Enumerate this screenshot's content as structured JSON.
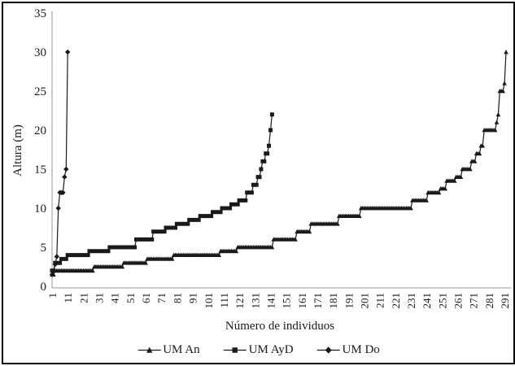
{
  "chart_data": {
    "type": "line",
    "title": "",
    "xlabel": "Número de individuos",
    "ylabel": "Altura (m)",
    "ylim": [
      0,
      35
    ],
    "yticks": [
      0,
      5,
      10,
      15,
      20,
      25,
      30,
      35
    ],
    "xtick_labels": [
      "1",
      "11",
      "21",
      "31",
      "41",
      "51",
      "61",
      "71",
      "81",
      "91",
      "101",
      "111",
      "121",
      "131",
      "141",
      "151",
      "161",
      "171",
      "181",
      "191",
      "201",
      "211",
      "221",
      "231",
      "241",
      "251",
      "261",
      "271",
      "281",
      "291"
    ],
    "xtick_interval": 10,
    "x_count": 292,
    "grid": false,
    "legend_position": "bottom",
    "colors": {
      "series": "#1a1a1a",
      "axis_line": "#aeaeae",
      "text": "#1a1a1a",
      "background": "#ffffff",
      "border": "#000000"
    },
    "series": [
      {
        "name": "UM An",
        "marker": "triangle",
        "runs": [
          [
            1.5,
            2
          ],
          [
            2,
            25
          ],
          [
            2.5,
            19
          ],
          [
            3,
            15
          ],
          [
            3.5,
            17
          ],
          [
            4,
            30
          ],
          [
            4.5,
            11
          ],
          [
            5,
            23
          ],
          [
            6,
            15
          ],
          [
            7,
            9
          ],
          [
            8,
            18
          ],
          [
            9,
            14
          ],
          [
            10,
            33
          ],
          [
            11,
            10
          ],
          [
            12,
            8
          ],
          [
            12.5,
            4
          ],
          [
            13.5,
            6
          ],
          [
            14,
            4
          ],
          [
            15,
            6
          ],
          [
            16,
            3
          ],
          [
            17,
            3
          ],
          [
            18,
            2
          ],
          [
            20,
            8
          ],
          [
            21,
            1
          ],
          [
            22,
            1
          ],
          [
            25,
            3
          ],
          [
            26,
            1
          ],
          [
            30,
            1
          ]
        ]
      },
      {
        "name": "UM AyD",
        "marker": "square",
        "runs": [
          [
            2,
            2
          ],
          [
            3,
            4
          ],
          [
            3.5,
            4
          ],
          [
            4,
            14
          ],
          [
            4.5,
            13
          ],
          [
            5,
            17
          ],
          [
            6,
            11
          ],
          [
            7,
            8
          ],
          [
            7.5,
            7
          ],
          [
            8,
            8
          ],
          [
            8.5,
            7
          ],
          [
            9,
            8
          ],
          [
            9.5,
            6
          ],
          [
            10,
            6
          ],
          [
            10.5,
            5
          ],
          [
            11,
            5
          ],
          [
            12,
            4
          ],
          [
            13,
            3
          ],
          [
            14,
            2
          ],
          [
            15,
            1
          ],
          [
            16,
            2
          ],
          [
            17,
            2
          ],
          [
            18,
            1
          ],
          [
            20,
            1
          ],
          [
            22,
            1
          ]
        ]
      },
      {
        "name": "UM Do",
        "marker": "diamond",
        "runs": [
          [
            1.5,
            1
          ],
          [
            2,
            1
          ],
          [
            2.8,
            1
          ],
          [
            3.8,
            1
          ],
          [
            10,
            1
          ],
          [
            12,
            3
          ],
          [
            14,
            1
          ],
          [
            15,
            1
          ],
          [
            30,
            1
          ]
        ]
      }
    ]
  }
}
